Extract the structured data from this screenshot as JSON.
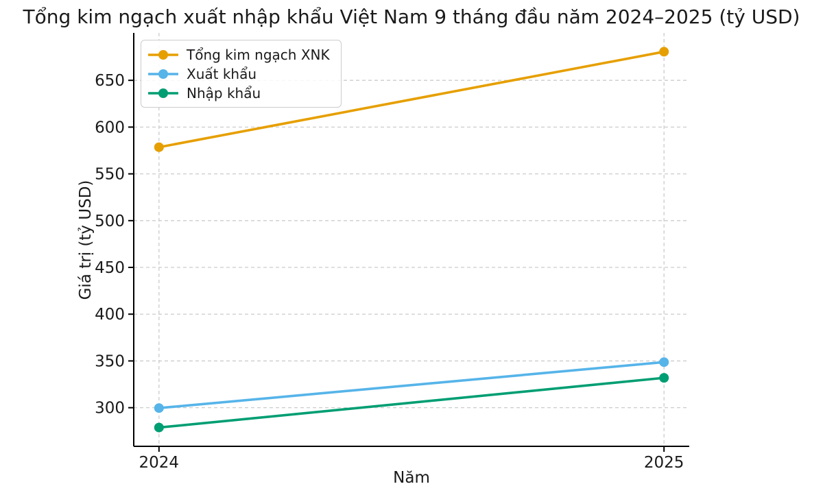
{
  "chart_data": {
    "type": "line",
    "title": "Tổng kim ngạch xuất nhập khẩu Việt Nam 9 tháng đầu năm 2024–2025 (tỷ USD)",
    "xlabel": "Năm",
    "ylabel": "Giá trị (tỷ USD)",
    "x": [
      2024,
      2025
    ],
    "xtick_labels": [
      "2024",
      "2025"
    ],
    "yticks": [
      300,
      350,
      400,
      450,
      500,
      550,
      600,
      650
    ],
    "xlim": [
      2023.95,
      2025.05
    ],
    "ylim": [
      258.7,
      700.7
    ],
    "grid": true,
    "grid_style": "dashed",
    "legend_position": "upper left",
    "marker": "o",
    "series": [
      {
        "name": "Tổng kim ngạch XNK",
        "color": "#E69F00",
        "values": [
          578.5,
          680.6
        ]
      },
      {
        "name": "Xuất khẩu",
        "color": "#56B4E9",
        "values": [
          299.6,
          348.7
        ]
      },
      {
        "name": "Nhập khẩu",
        "color": "#009E73",
        "values": [
          278.8,
          331.9
        ]
      }
    ]
  },
  "colors": {
    "grid": "#cccccc",
    "spine": "#000000",
    "text": "#1a1a1a",
    "background": "#ffffff"
  }
}
